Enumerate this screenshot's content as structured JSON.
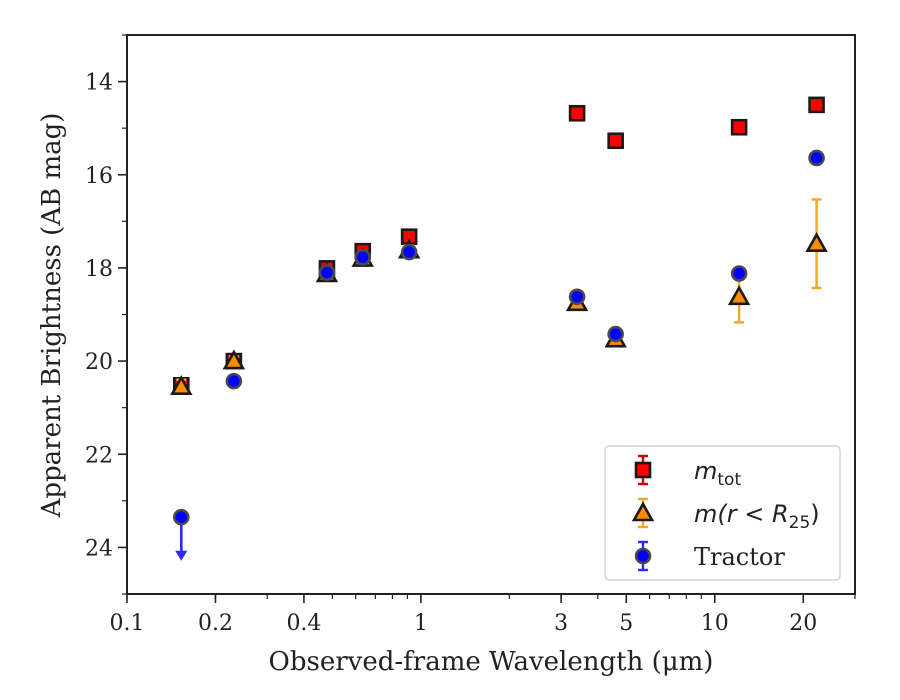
{
  "chart_data": {
    "type": "scatter",
    "xlabel": "Observed-frame Wavelength (μm)",
    "ylabel": "Apparent Brightness (AB mag)",
    "x_scale": "log",
    "x_range": [
      0.1,
      30
    ],
    "y_range": [
      13,
      25
    ],
    "y_inverted": true,
    "x_ticks": [
      {
        "value": 0.1,
        "label": "0.1"
      },
      {
        "value": 0.2,
        "label": "0.2"
      },
      {
        "value": 0.4,
        "label": "0.4"
      },
      {
        "value": 1,
        "label": "1"
      },
      {
        "value": 3,
        "label": "3"
      },
      {
        "value": 5,
        "label": "5"
      },
      {
        "value": 10,
        "label": "10"
      },
      {
        "value": 20,
        "label": "20"
      }
    ],
    "y_ticks": [
      {
        "value": 14,
        "label": "14"
      },
      {
        "value": 16,
        "label": "16"
      },
      {
        "value": 18,
        "label": "18"
      },
      {
        "value": 20,
        "label": "20"
      },
      {
        "value": 22,
        "label": "22"
      },
      {
        "value": 24,
        "label": "24"
      }
    ],
    "legend_position": "lower-right",
    "series": [
      {
        "name": "m_tot",
        "legend_label_main": "m",
        "legend_label_sub": "tot",
        "marker": "square",
        "face_color": "#ff0000",
        "edge_color": "#1a1a1a",
        "error_color": "#d00000",
        "points": [
          {
            "x": 0.153,
            "y": 20.52,
            "err": 0.12
          },
          {
            "x": 0.231,
            "y": 20.0,
            "err": 0.1
          },
          {
            "x": 0.479,
            "y": 18.01,
            "err": 0.1
          },
          {
            "x": 0.634,
            "y": 17.64,
            "err": 0.1
          },
          {
            "x": 0.912,
            "y": 17.33,
            "err": 0.1
          },
          {
            "x": 3.4,
            "y": 14.68,
            "err": 0.08
          },
          {
            "x": 4.6,
            "y": 15.27,
            "err": 0.08
          },
          {
            "x": 12.1,
            "y": 14.98,
            "err": 0.08
          },
          {
            "x": 22.2,
            "y": 14.5,
            "err": 0.08
          }
        ]
      },
      {
        "name": "m(r<R25)",
        "legend_label_main": "m(r < R",
        "legend_label_sub": "25",
        "legend_label_tail": ")",
        "marker": "triangle",
        "face_color": "#ff8c00",
        "edge_color": "#1a1a1a",
        "error_color": "#f5a623",
        "points": [
          {
            "x": 0.153,
            "y": 20.55,
            "err": 0.15
          },
          {
            "x": 0.231,
            "y": 20.0,
            "err": 0.1
          },
          {
            "x": 0.479,
            "y": 18.13,
            "err": 0.1
          },
          {
            "x": 0.634,
            "y": 17.8,
            "err": 0.1
          },
          {
            "x": 0.912,
            "y": 17.62,
            "err": 0.1
          },
          {
            "x": 3.4,
            "y": 18.75,
            "err": 0.1
          },
          {
            "x": 4.6,
            "y": 19.53,
            "err": 0.1
          },
          {
            "x": 12.1,
            "y": 18.62,
            "err": 0.55
          },
          {
            "x": 22.2,
            "y": 17.48,
            "err": 0.95
          }
        ]
      },
      {
        "name": "Tractor",
        "legend_label_main": "Tractor",
        "marker": "circle",
        "face_color": "#0000ff",
        "edge_color": "#4a4a4a",
        "error_color": "#2b2bff",
        "upper_limit_color": "#2b2bff",
        "points": [
          {
            "x": 0.153,
            "y": 23.35,
            "err": 0,
            "upper_limit": true
          },
          {
            "x": 0.231,
            "y": 20.43,
            "err": 0.08
          },
          {
            "x": 0.479,
            "y": 18.1,
            "err": 0.08
          },
          {
            "x": 0.634,
            "y": 17.77,
            "err": 0.08
          },
          {
            "x": 0.912,
            "y": 17.66,
            "err": 0.08
          },
          {
            "x": 3.4,
            "y": 18.62,
            "err": 0.08
          },
          {
            "x": 4.6,
            "y": 19.42,
            "err": 0.08
          },
          {
            "x": 12.1,
            "y": 18.12,
            "err": 0.08
          },
          {
            "x": 22.2,
            "y": 15.64,
            "err": 0.08
          }
        ]
      }
    ]
  }
}
